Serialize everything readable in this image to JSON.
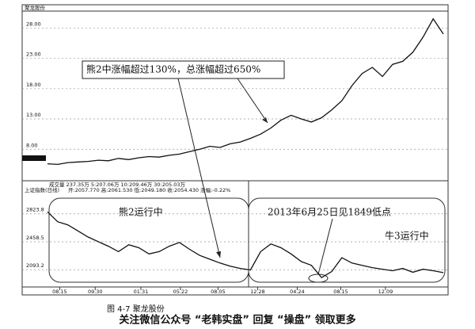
{
  "chart_data": [
    {
      "type": "line",
      "title": "聚龙股份",
      "info": "成交量  237.35万  5:207.06万  10:209.46万  30:205.03万",
      "annotations": [
        "熊2中涨幅超过130%，总涨幅超过650%"
      ],
      "series": [
        {
          "color": "#111111",
          "values": [
            5.6,
            5.5,
            5.8,
            5.9,
            6.0,
            6.2,
            6.1,
            6.5,
            6.3,
            6.6,
            6.8,
            6.7,
            7.0,
            7.2,
            7.6,
            8.0,
            8.5,
            8.3,
            8.9,
            9.2,
            9.8,
            10.5,
            11.5,
            12.8,
            13.6,
            13.0,
            12.5,
            13.2,
            14.5,
            16.0,
            18.5,
            20.5,
            21.5,
            20.0,
            22.0,
            22.5,
            24.0,
            26.5,
            29.5,
            27.0
          ]
        }
      ],
      "xlim": [
        0,
        39
      ],
      "ylim": [
        3.2,
        30
      ],
      "yticks": [
        {
          "value": 28,
          "label": "28.00"
        },
        {
          "value": 23,
          "label": "23.00"
        },
        {
          "value": 18,
          "label": "18.00"
        },
        {
          "value": 13,
          "label": "13.00"
        },
        {
          "value": 8,
          "label": "8.00"
        }
      ],
      "grid": true
    },
    {
      "type": "line",
      "title": "上证指数(日线)",
      "info": "开:2057.770  高:2061.530  低:2049.180  收:2054.430  涨幅:-0.22%",
      "annotations": [
        "熊2运行中",
        "2013年6月25日见1849低点",
        "牛3运行中"
      ],
      "series": [
        {
          "color": "#111111",
          "values": [
            2850,
            2720,
            2680,
            2600,
            2520,
            2460,
            2400,
            2330,
            2420,
            2380,
            2300,
            2330,
            2400,
            2450,
            2360,
            2280,
            2230,
            2180,
            2140,
            2110,
            2090,
            2330,
            2430,
            2380,
            2300,
            2200,
            2150,
            1990,
            2070,
            2250,
            2180,
            2150,
            2120,
            2100,
            2080,
            2110,
            2060,
            2100,
            2080,
            2055
          ]
        }
      ],
      "xlim": [
        0,
        39
      ],
      "ylim": [
        1940,
        3080
      ],
      "yticks": [
        2823.8,
        2458.5,
        2093.2
      ],
      "xticks": [
        {
          "value": 1.2,
          "label": "08.15"
        },
        {
          "value": 4.7,
          "label": "09.30"
        },
        {
          "value": 9.2,
          "label": "01.31"
        },
        {
          "value": 13.1,
          "label": "05.22"
        },
        {
          "value": 16.8,
          "label": "08.05"
        },
        {
          "value": 20.7,
          "label": "12.28"
        },
        {
          "value": 24.6,
          "label": "04.24"
        },
        {
          "value": 28.9,
          "label": "08.15"
        },
        {
          "value": 33.3,
          "label": "12.09"
        }
      ],
      "grid": true
    }
  ],
  "caption": "图 4-7   聚龙股份",
  "watermark": "关注微信公众号 “老韩实盘” 回复 “操盘” 领取更多"
}
